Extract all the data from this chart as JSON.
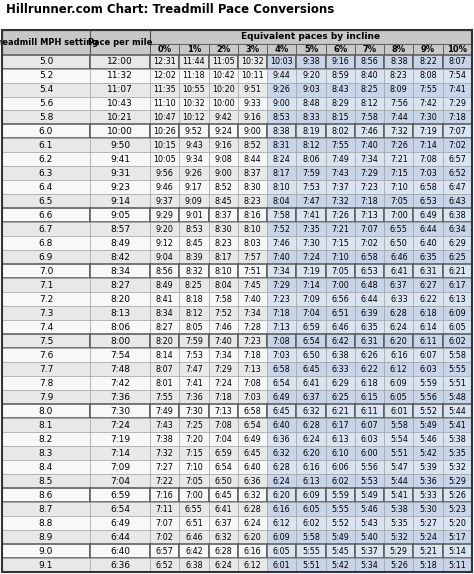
{
  "title": "Hillrunner.com Chart: Treadmill Pace Conversions",
  "pct_labels": [
    "0%",
    "1%",
    "2%",
    "3%",
    "4%",
    "5%",
    "6%",
    "7%",
    "8%",
    "9%",
    "10%"
  ],
  "rows": [
    [
      "5.0",
      "12:00",
      "12:31",
      "11:44",
      "11:05",
      "10:32",
      "10:03",
      "9:38",
      "9:16",
      "8:56",
      "8:38",
      "8:22",
      "8:07"
    ],
    [
      "5.2",
      "11:32",
      "12:02",
      "11:18",
      "10:42",
      "10:11",
      "9:44",
      "9:20",
      "8:59",
      "8:40",
      "8:23",
      "8:08",
      "7:54"
    ],
    [
      "5.4",
      "11:07",
      "11:35",
      "10:55",
      "10:20",
      "9:51",
      "9:26",
      "9:03",
      "8:43",
      "8:25",
      "8:09",
      "7:55",
      "7:41"
    ],
    [
      "5.6",
      "10:43",
      "11:10",
      "10:32",
      "10:00",
      "9:33",
      "9:00",
      "8:48",
      "8:29",
      "8:12",
      "7:56",
      "7:42",
      "7:29"
    ],
    [
      "5.8",
      "10:21",
      "10:47",
      "10:12",
      "9:42",
      "9:16",
      "8:53",
      "8:33",
      "8:15",
      "7:58",
      "7:44",
      "7:30",
      "7:18"
    ],
    [
      "6.0",
      "10:00",
      "10:26",
      "9:52",
      "9:24",
      "9:00",
      "8:38",
      "8:19",
      "8:02",
      "7:46",
      "7:32",
      "7:19",
      "7:07"
    ],
    [
      "6.1",
      "9:50",
      "10:15",
      "9:43",
      "9:16",
      "8:52",
      "8:31",
      "8:12",
      "7:55",
      "7:40",
      "7:26",
      "7:14",
      "7:02"
    ],
    [
      "6.2",
      "9:41",
      "10:05",
      "9:34",
      "9:08",
      "8:44",
      "8:24",
      "8:06",
      "7:49",
      "7:34",
      "7:21",
      "7:08",
      "6:57"
    ],
    [
      "6.3",
      "9:31",
      "9:56",
      "9:26",
      "9:00",
      "8:37",
      "8:17",
      "7:59",
      "7:43",
      "7:29",
      "7:15",
      "7:03",
      "6:52"
    ],
    [
      "6.4",
      "9:23",
      "9:46",
      "9:17",
      "8:52",
      "8:30",
      "8:10",
      "7:53",
      "7:37",
      "7:23",
      "7:10",
      "6:58",
      "6:47"
    ],
    [
      "6.5",
      "9:14",
      "9:37",
      "9:09",
      "8:45",
      "8:23",
      "8:04",
      "7:47",
      "7:32",
      "7:18",
      "7:05",
      "6:53",
      "6:43"
    ],
    [
      "6.6",
      "9:05",
      "9:29",
      "9:01",
      "8:37",
      "8:16",
      "7:58",
      "7:41",
      "7:26",
      "7:13",
      "7:00",
      "6:49",
      "6:38"
    ],
    [
      "6.7",
      "8:57",
      "9:20",
      "8:53",
      "8:30",
      "8:10",
      "7:52",
      "7:35",
      "7:21",
      "7:07",
      "6:55",
      "6:44",
      "6:34"
    ],
    [
      "6.8",
      "8:49",
      "9:12",
      "8:45",
      "8:23",
      "8:03",
      "7:46",
      "7:30",
      "7:15",
      "7:02",
      "6:50",
      "6:40",
      "6:29"
    ],
    [
      "6.9",
      "8:42",
      "9:04",
      "8:39",
      "8:17",
      "7:57",
      "7:40",
      "7:24",
      "7:10",
      "6:58",
      "6:46",
      "6:35",
      "6:25"
    ],
    [
      "7.0",
      "8:34",
      "8:56",
      "8:32",
      "8:10",
      "7:51",
      "7:34",
      "7:19",
      "7:05",
      "6:53",
      "6:41",
      "6:31",
      "6:21"
    ],
    [
      "7.1",
      "8:27",
      "8:49",
      "8:25",
      "8:04",
      "7:45",
      "7:29",
      "7:14",
      "7:00",
      "6:48",
      "6:37",
      "6:27",
      "6:17"
    ],
    [
      "7.2",
      "8:20",
      "8:41",
      "8:18",
      "7:58",
      "7:40",
      "7:23",
      "7:09",
      "6:56",
      "6:44",
      "6:33",
      "6:22",
      "6:13"
    ],
    [
      "7.3",
      "8:13",
      "8:34",
      "8:12",
      "7:52",
      "7:34",
      "7:18",
      "7:04",
      "6:51",
      "6:39",
      "6:28",
      "6:18",
      "6:09"
    ],
    [
      "7.4",
      "8:06",
      "8:27",
      "8:05",
      "7:46",
      "7:28",
      "7:13",
      "6:59",
      "6:46",
      "6:35",
      "6:24",
      "6:14",
      "6:05"
    ],
    [
      "7.5",
      "8:00",
      "8:20",
      "7:59",
      "7:40",
      "7:23",
      "7:08",
      "6:54",
      "6:42",
      "6:31",
      "6:20",
      "6:11",
      "6:02"
    ],
    [
      "7.6",
      "7:54",
      "8:14",
      "7:53",
      "7:34",
      "7:18",
      "7:03",
      "6:50",
      "6:38",
      "6:26",
      "6:16",
      "6:07",
      "5:58"
    ],
    [
      "7.7",
      "7:48",
      "8:07",
      "7:47",
      "7:29",
      "7:13",
      "6:58",
      "6:45",
      "6:33",
      "6:22",
      "6:12",
      "6:03",
      "5:55"
    ],
    [
      "7.8",
      "7:42",
      "8:01",
      "7:41",
      "7:24",
      "7:08",
      "6:54",
      "6:41",
      "6:29",
      "6:18",
      "6:09",
      "5:59",
      "5:51"
    ],
    [
      "7.9",
      "7:36",
      "7:55",
      "7:36",
      "7:18",
      "7:03",
      "6:49",
      "6:37",
      "6:25",
      "6:15",
      "6:05",
      "5:56",
      "5:48"
    ],
    [
      "8.0",
      "7:30",
      "7:49",
      "7:30",
      "7:13",
      "6:58",
      "6:45",
      "6:32",
      "6:21",
      "6:11",
      "6:01",
      "5:52",
      "5:44"
    ],
    [
      "8.1",
      "7:24",
      "7:43",
      "7:25",
      "7:08",
      "6:54",
      "6:40",
      "6:28",
      "6:17",
      "6:07",
      "5:58",
      "5:49",
      "5:41"
    ],
    [
      "8.2",
      "7:19",
      "7:38",
      "7:20",
      "7:04",
      "6:49",
      "6:36",
      "6:24",
      "6:13",
      "6:03",
      "5:54",
      "5:46",
      "5:38"
    ],
    [
      "8.3",
      "7:14",
      "7:32",
      "7:15",
      "6:59",
      "6:45",
      "6:32",
      "6:20",
      "6:10",
      "6:00",
      "5:51",
      "5:42",
      "5:35"
    ],
    [
      "8.4",
      "7:09",
      "7:27",
      "7:10",
      "6:54",
      "6:40",
      "6:28",
      "6:16",
      "6:06",
      "5:56",
      "5:47",
      "5:39",
      "5:32"
    ],
    [
      "8.5",
      "7:04",
      "7:22",
      "7:05",
      "6:50",
      "6:36",
      "6:24",
      "6:13",
      "6:02",
      "5:53",
      "5:44",
      "5:36",
      "5:29"
    ],
    [
      "8.6",
      "6:59",
      "7:16",
      "7:00",
      "6:45",
      "6:32",
      "6:20",
      "6:09",
      "5:59",
      "5:49",
      "5:41",
      "5:33",
      "5:26"
    ],
    [
      "8.7",
      "6:54",
      "7:11",
      "6:55",
      "6:41",
      "6:28",
      "6:16",
      "6:05",
      "5:55",
      "5:46",
      "5:38",
      "5:30",
      "5:23"
    ],
    [
      "8.8",
      "6:49",
      "7:07",
      "6:51",
      "6:37",
      "6:24",
      "6:12",
      "6:02",
      "5:52",
      "5:43",
      "5:35",
      "5:27",
      "5:20"
    ],
    [
      "8.9",
      "6:44",
      "7:02",
      "6:46",
      "6:32",
      "6:20",
      "6:09",
      "5:58",
      "5:49",
      "5:40",
      "5:32",
      "5:24",
      "5:17"
    ],
    [
      "9.0",
      "6:40",
      "6:57",
      "6:42",
      "6:28",
      "6:16",
      "6:05",
      "5:55",
      "5:45",
      "5:37",
      "5:29",
      "5:21",
      "5:14"
    ],
    [
      "9.1",
      "6:36",
      "6:52",
      "6:38",
      "6:24",
      "6:12",
      "6:01",
      "5:51",
      "5:42",
      "5:34",
      "5:26",
      "5:18",
      "5:11"
    ]
  ],
  "group_separators": [
    0,
    5,
    11,
    15,
    20,
    25,
    31,
    35
  ],
  "title_fontsize": 8.5,
  "header_fontsize": 6.5,
  "cell_fontsize": 5.8,
  "mph_fontsize": 6.5,
  "pace_fontsize": 6.5,
  "color_header_bg": "#c8c8c8",
  "color_row_light": "#e8e8e8",
  "color_row_white": "#f8f8f8",
  "color_blue_light": "#c8d4e8",
  "color_blue_white": "#d8e4f0",
  "color_group_sep": "#606060",
  "color_normal_sep": "#a0a0a0",
  "color_text": "#000000",
  "fig_width": 4.74,
  "fig_height": 5.74,
  "dpi": 100
}
